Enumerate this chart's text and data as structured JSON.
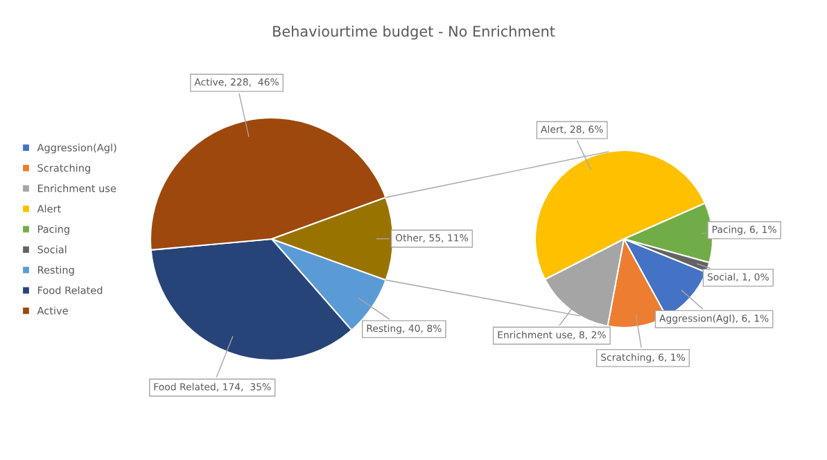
{
  "chart_data": [
    {
      "type": "pie",
      "title": "Behaviourtime budget - No Enrichment",
      "legend": "left",
      "categories": [
        "Resting",
        "Food Related",
        "Active",
        null
      ],
      "values": [
        40,
        174,
        228,
        55
      ],
      "colors": [
        "#5b9bd5",
        "#264478",
        "#9e480e",
        "#997300"
      ],
      "value_labels": [
        "Resting, 40, 8%",
        "Food Related, 174,  35%",
        "Active, 228,  46%",
        "Other, 55, 11%"
      ]
    },
    {
      "type": "pie",
      "legend": "left",
      "categories": [
        "Aggression(Agl)",
        "Scratching",
        "Enrichment use",
        "Alert",
        "Pacing",
        "Social"
      ],
      "values": [
        6,
        6,
        8,
        28,
        6,
        1
      ],
      "colors": [
        "#4472c4",
        "#ed7d31",
        "#a5a5a5",
        "#ffc000",
        "#70ad47",
        "#636363"
      ],
      "value_labels": [
        "Aggression(Agl), 6, 1%",
        "Scratching, 6, 1%",
        "Enrichment use, 8, 2%",
        "Alert, 28, 6%",
        "Pacing, 6, 1%",
        "Social, 1, 0%"
      ]
    }
  ]
}
